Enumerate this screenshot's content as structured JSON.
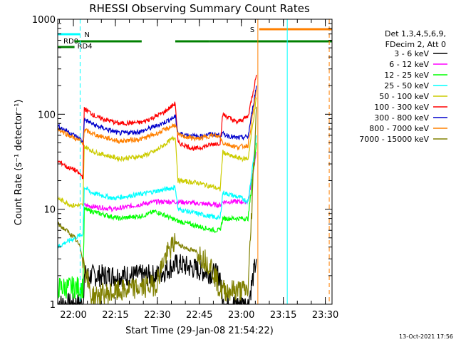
{
  "chart_data": {
    "type": "line",
    "title": "RHESSI Observing Summary Count Rates",
    "xlabel": "Start Time (29-Jan-08 21:54:22)",
    "ylabel": "Count Rate (s⁻¹ detector⁻¹)",
    "y_scale": "log",
    "ylim": [
      1,
      1000
    ],
    "x_unit": "minutes after 21:54:22",
    "xlim": [
      0,
      98
    ],
    "y_ticks": [
      "1",
      "10",
      "100",
      "1000"
    ],
    "x_ticks": [
      {
        "label": "22:00",
        "t": 5.6
      },
      {
        "label": "22:15",
        "t": 20.6
      },
      {
        "label": "22:30",
        "t": 35.6
      },
      {
        "label": "22:45",
        "t": 50.6
      },
      {
        "label": "23:00",
        "t": 65.6
      },
      {
        "label": "23:15",
        "t": 80.6
      },
      {
        "label": "23:30",
        "t": 95.6
      }
    ],
    "legend_header": [
      "Det 1,3,4,5,6,9,",
      "FDecim 2, Att 0"
    ],
    "legend_placement": "right",
    "date_stamp": "13-Oct-2021 17:56",
    "series": [
      {
        "name": "3 - 6 keV",
        "color": "#000000",
        "t": [
          0,
          9,
          9.5,
          18,
          35,
          42,
          44,
          58,
          59,
          68,
          71
        ],
        "y": [
          1,
          1,
          2,
          2,
          2,
          2.6,
          2.6,
          2,
          1,
          1,
          3
        ]
      },
      {
        "name": "6 - 12 keV",
        "color": "#ff00ff",
        "t": [
          9.5,
          20,
          35,
          43,
          58,
          59,
          68,
          71
        ],
        "y": [
          11,
          10,
          12,
          12,
          11,
          12,
          12,
          40
        ]
      },
      {
        "name": "12 - 25 keV",
        "color": "#00ff00",
        "t": [
          0,
          9,
          9.5,
          15,
          22,
          30,
          35,
          43,
          56,
          58,
          59,
          68,
          71
        ],
        "y": [
          1.5,
          1.5,
          10,
          9,
          8,
          8.5,
          9.5,
          7.5,
          6,
          6,
          8,
          8,
          50
        ]
      },
      {
        "name": "25 - 50 keV",
        "color": "#00ffff",
        "t": [
          0,
          3,
          9,
          9.5,
          12,
          20,
          30,
          42,
          43,
          50,
          58,
          59,
          66,
          68,
          71
        ],
        "y": [
          4,
          4.5,
          5.5,
          17,
          15,
          13,
          14.5,
          17,
          10,
          9,
          8,
          15,
          13,
          12,
          60
        ]
      },
      {
        "name": "50 - 100 keV",
        "color": "#cccc00",
        "t": [
          0,
          5,
          9,
          9.5,
          13,
          22,
          30,
          35,
          42,
          43,
          50,
          56,
          58,
          59,
          62,
          66,
          68,
          71
        ],
        "y": [
          13,
          11,
          11,
          46,
          40,
          34,
          36,
          41,
          58,
          20,
          19,
          17,
          16,
          40,
          36,
          34,
          34,
          150
        ]
      },
      {
        "name": "100 - 300 keV",
        "color": "#ff0000",
        "t": [
          0,
          2,
          3,
          6,
          9,
          9.5,
          14,
          22,
          30,
          35,
          38,
          42,
          43,
          49,
          55,
          58,
          59,
          64,
          68,
          71
        ],
        "y": [
          32,
          30,
          28,
          26,
          22,
          115,
          93,
          80,
          82,
          95,
          105,
          130,
          50,
          43,
          48,
          50,
          100,
          82,
          95,
          260
        ]
      },
      {
        "name": "300 - 800 keV",
        "color": "#0000cc",
        "t": [
          0,
          4,
          8,
          9,
          9.5,
          14,
          22,
          30,
          35,
          38,
          42,
          43,
          50,
          55,
          58,
          59,
          64,
          68,
          71
        ],
        "y": [
          75,
          65,
          55,
          50,
          88,
          75,
          63,
          66,
          75,
          82,
          94,
          63,
          58,
          62,
          60,
          62,
          56,
          58,
          200
        ]
      },
      {
        "name": "800 - 7000 keV",
        "color": "#ff8000",
        "t": [
          0,
          4,
          8,
          9,
          9.5,
          14,
          22,
          30,
          35,
          38,
          42,
          43,
          50,
          55,
          58,
          59,
          64,
          68,
          71
        ],
        "y": [
          70,
          60,
          52,
          48,
          68,
          60,
          52,
          55,
          62,
          68,
          78,
          60,
          55,
          60,
          58,
          50,
          45,
          47,
          180
        ]
      },
      {
        "name": "7000 - 15000 keV",
        "color": "#808000",
        "t": [
          0,
          3,
          6,
          8,
          9,
          10,
          12,
          35,
          38,
          42,
          45,
          50,
          55,
          58,
          68,
          71
        ],
        "y": [
          7,
          6,
          5,
          4,
          3,
          2.2,
          1.2,
          1.6,
          3,
          4.5,
          4,
          3.5,
          2.5,
          1.4,
          1.4,
          120
        ]
      }
    ],
    "flag_bars": [
      {
        "name": "RD0",
        "color": "#008000",
        "t_ranges": [
          [
            0,
            6
          ]
        ],
        "level": 1
      },
      {
        "name": "RD4",
        "color": "#008000",
        "t_ranges": [
          [
            6,
            30
          ],
          [
            42,
            54
          ],
          [
            54,
            98
          ]
        ],
        "level": 2
      },
      {
        "name": "N",
        "color": "#00ffff",
        "t_ranges": [
          [
            0,
            8
          ]
        ],
        "level": 3
      },
      {
        "name": "S",
        "color": "#ff8000",
        "t_ranges": [
          [
            72,
            98
          ]
        ],
        "level": 4
      }
    ],
    "vertical_markers": [
      {
        "t": 8,
        "color": "#00ffff",
        "style": "dashed"
      },
      {
        "t": 71.5,
        "color": "#ff8000",
        "style": "solid"
      },
      {
        "t": 82,
        "color": "#00ffff",
        "style": "solid"
      },
      {
        "t": 97,
        "color": "#ff8000",
        "style": "dashed"
      }
    ]
  }
}
